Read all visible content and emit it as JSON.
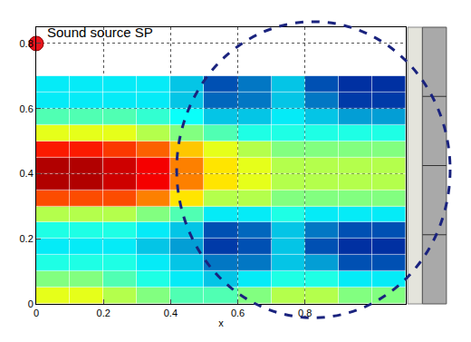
{
  "chart_data": {
    "type": "heatmap",
    "xlabel": "x",
    "x": [
      0,
      0.1,
      0.2,
      0.3,
      0.4,
      0.5,
      0.6,
      0.7,
      0.8,
      0.9,
      1.0,
      1.1
    ],
    "y": [
      0,
      0.05,
      0.1,
      0.15,
      0.2,
      0.25,
      0.3,
      0.35,
      0.4,
      0.45,
      0.5,
      0.55,
      0.6,
      0.65,
      0.7
    ],
    "z": [
      [
        0.6,
        0.6,
        0.55,
        0.5,
        0.45,
        0.45,
        0.5,
        0.55,
        0.55,
        0.5,
        0.5
      ],
      [
        0.5,
        0.5,
        0.45,
        0.4,
        0.35,
        0.3,
        0.35,
        0.4,
        0.4,
        0.35,
        0.35
      ],
      [
        0.4,
        0.4,
        0.4,
        0.35,
        0.3,
        0.2,
        0.2,
        0.3,
        0.25,
        0.15,
        0.15
      ],
      [
        0.35,
        0.35,
        0.35,
        0.3,
        0.25,
        0.12,
        0.15,
        0.3,
        0.15,
        0.1,
        0.1
      ],
      [
        0.4,
        0.4,
        0.4,
        0.35,
        0.3,
        0.15,
        0.18,
        0.3,
        0.2,
        0.15,
        0.15
      ],
      [
        0.55,
        0.55,
        0.55,
        0.5,
        0.45,
        0.35,
        0.35,
        0.4,
        0.35,
        0.35,
        0.35
      ],
      [
        0.8,
        0.8,
        0.8,
        0.75,
        0.65,
        0.55,
        0.55,
        0.5,
        0.5,
        0.5,
        0.5
      ],
      [
        0.95,
        0.95,
        0.92,
        0.88,
        0.75,
        0.65,
        0.6,
        0.55,
        0.55,
        0.55,
        0.55
      ],
      [
        0.95,
        0.95,
        0.92,
        0.88,
        0.75,
        0.65,
        0.6,
        0.55,
        0.55,
        0.55,
        0.55
      ],
      [
        0.85,
        0.85,
        0.82,
        0.78,
        0.68,
        0.6,
        0.55,
        0.5,
        0.5,
        0.5,
        0.5
      ],
      [
        0.6,
        0.6,
        0.6,
        0.55,
        0.5,
        0.45,
        0.4,
        0.4,
        0.4,
        0.4,
        0.4
      ],
      [
        0.45,
        0.45,
        0.45,
        0.42,
        0.38,
        0.3,
        0.3,
        0.35,
        0.3,
        0.25,
        0.25
      ],
      [
        0.35,
        0.35,
        0.35,
        0.35,
        0.3,
        0.18,
        0.2,
        0.3,
        0.2,
        0.12,
        0.12
      ],
      [
        0.35,
        0.35,
        0.35,
        0.35,
        0.3,
        0.15,
        0.2,
        0.3,
        0.15,
        0.1,
        0.1
      ]
    ],
    "zlim": [
      0,
      1
    ],
    "xlim": [
      0,
      1.1
    ],
    "ylim": [
      0,
      0.85
    ],
    "xticks": [
      0,
      0.2,
      0.4,
      0.6,
      0.8
    ],
    "yticks": [
      0,
      0.2,
      0.4,
      0.6,
      0.8
    ],
    "grid": true,
    "source": {
      "x": 0,
      "y": 0.8,
      "label": "Sound source SP",
      "color": "#e8141c"
    }
  }
}
